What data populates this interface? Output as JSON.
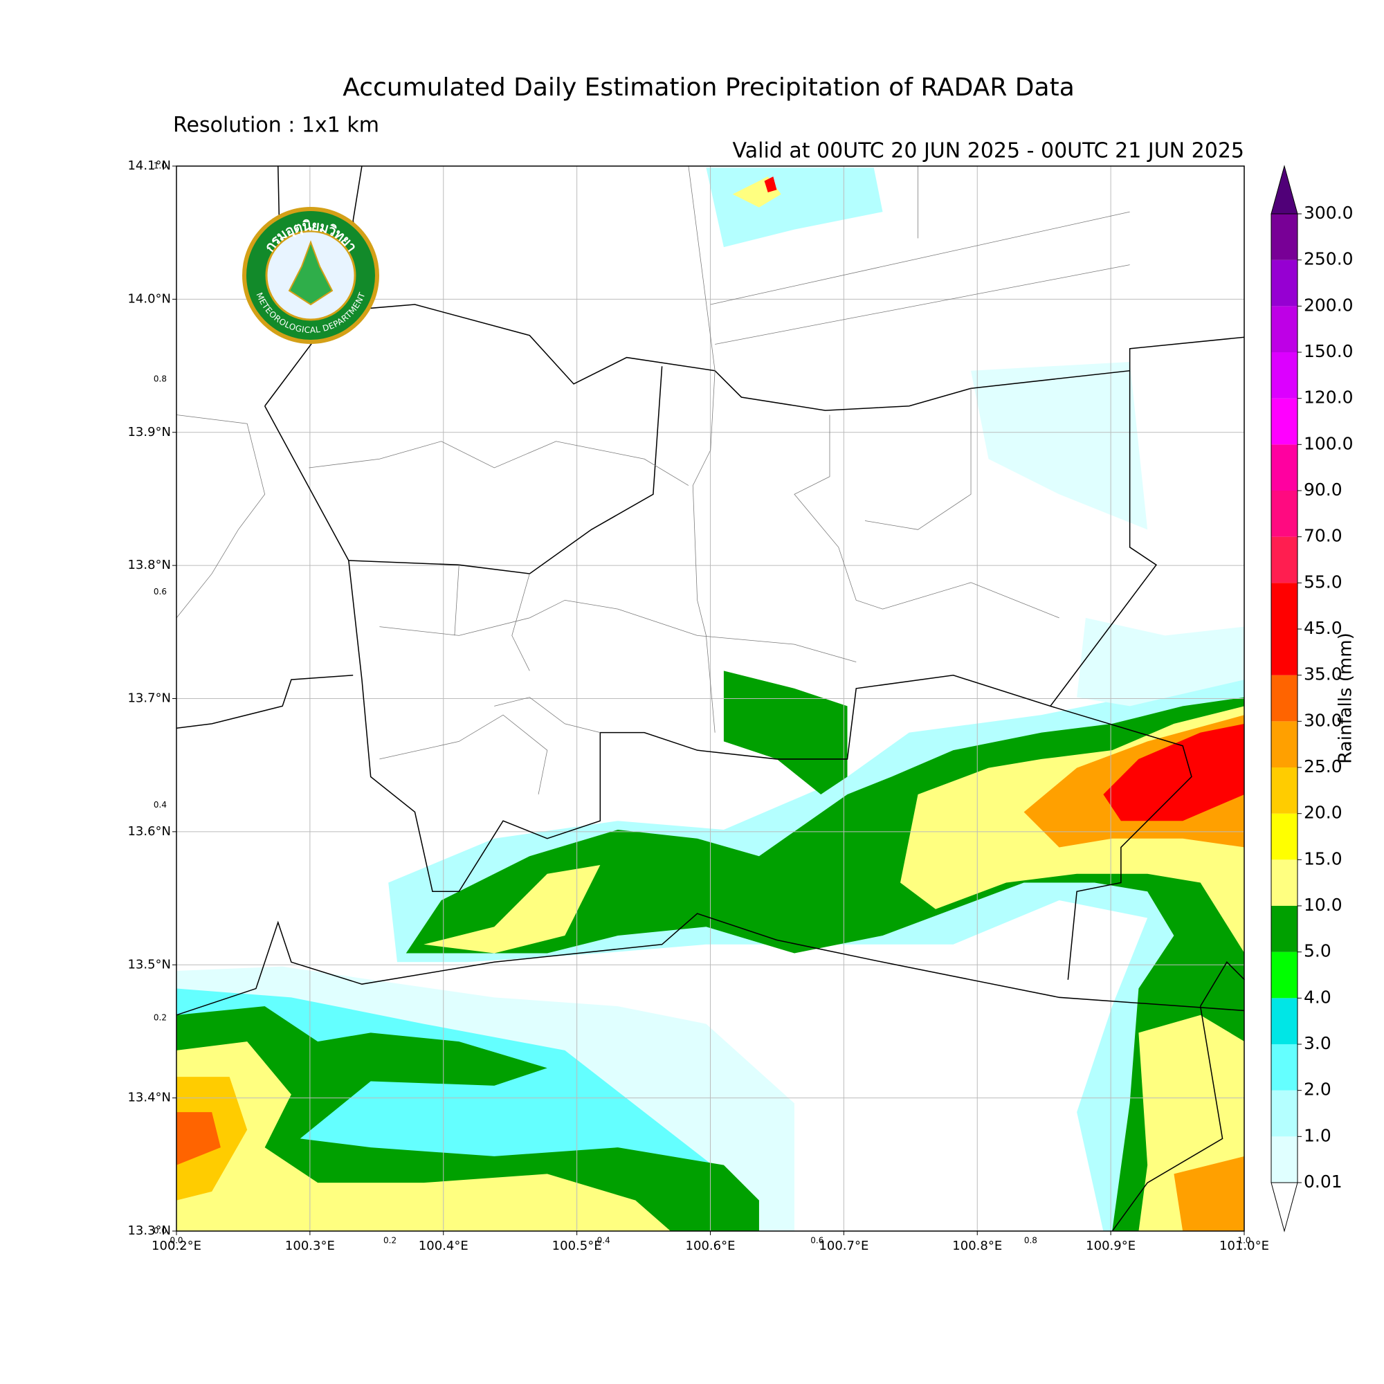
{
  "chart_data": {
    "type": "contour-map",
    "title": "Accumulated Daily Estimation Precipitation of RADAR Data",
    "subtitle": "Resolution : 1x1 km",
    "valid_time": "Valid at 00UTC 20 JUN 2025 - 00UTC 21 JUN 2025",
    "xlim": [
      100.2,
      101.0
    ],
    "ylim": [
      13.3,
      14.1
    ],
    "xticks": [
      {
        "value": 100.2,
        "label": "100.2°E"
      },
      {
        "value": 100.3,
        "label": "100.3°E"
      },
      {
        "value": 100.4,
        "label": "100.4°E"
      },
      {
        "value": 100.5,
        "label": "100.5°E"
      },
      {
        "value": 100.6,
        "label": "100.6°E"
      },
      {
        "value": 100.7,
        "label": "100.7°E"
      },
      {
        "value": 100.8,
        "label": "100.8°E"
      },
      {
        "value": 100.9,
        "label": "100.9°E"
      },
      {
        "value": 101.0,
        "label": "101.0°E"
      }
    ],
    "yticks": [
      {
        "value": 13.3,
        "label": "13.3°N"
      },
      {
        "value": 13.4,
        "label": "13.4°N"
      },
      {
        "value": 13.5,
        "label": "13.5°N"
      },
      {
        "value": 13.6,
        "label": "13.6°N"
      },
      {
        "value": 13.7,
        "label": "13.7°N"
      },
      {
        "value": 13.8,
        "label": "13.8°N"
      },
      {
        "value": 13.9,
        "label": "13.9°N"
      },
      {
        "value": 14.0,
        "label": "14.0°N"
      },
      {
        "value": 14.1,
        "label": "14.1°N"
      }
    ],
    "inset_ticks": [
      {
        "value": 0,
        "label": "0.0"
      },
      0.2,
      0.4,
      0.6,
      0.8,
      {
        "value": 1,
        "label": "1.0"
      }
    ],
    "grid": true,
    "colorbar": {
      "label": "Rainfalls (mm)",
      "levels": [
        {
          "value": 0.01,
          "label": "0.01"
        },
        {
          "value": 1,
          "label": "1.0"
        },
        {
          "value": 2,
          "label": "2.0"
        },
        {
          "value": 3,
          "label": "3.0"
        },
        {
          "value": 4,
          "label": "4.0"
        },
        {
          "value": 5,
          "label": "5.0"
        },
        {
          "value": 10,
          "label": "10.0"
        },
        {
          "value": 15,
          "label": "15.0"
        },
        {
          "value": 20,
          "label": "20.0"
        },
        {
          "value": 25,
          "label": "25.0"
        },
        {
          "value": 30,
          "label": "30.0"
        },
        {
          "value": 35,
          "label": "35.0"
        },
        {
          "value": 45,
          "label": "45.0"
        },
        {
          "value": 55,
          "label": "55.0"
        },
        {
          "value": 70,
          "label": "70.0"
        },
        {
          "value": 90,
          "label": "90.0"
        },
        {
          "value": 100,
          "label": "100.0"
        },
        {
          "value": 120,
          "label": "120.0"
        },
        {
          "value": 150,
          "label": "150.0"
        },
        {
          "value": 200,
          "label": "200.0"
        },
        {
          "value": 250,
          "label": "250.0"
        },
        {
          "value": 300,
          "label": "300.0"
        }
      ],
      "colors": [
        "#e0ffff",
        "#b4ffff",
        "#64ffff",
        "#00e6e6",
        "#00ff00",
        "#00a000",
        "#ffff80",
        "#ffff00",
        "#ffcc00",
        "#ffa000",
        "#ff6400",
        "#ff0000",
        "#ff0000",
        "#ff1e50",
        "#ff0a80",
        "#ff00a0",
        "#ff00ff",
        "#dc00ff",
        "#be00e6",
        "#9600d2",
        "#780096"
      ],
      "under_color": "#ffffff",
      "over_color": "#500078"
    },
    "logo": {
      "thai_name": "กรมอุตุนิยมวิทยา",
      "english_name": "METEOROLOGICAL DEPARTMENT"
    }
  }
}
